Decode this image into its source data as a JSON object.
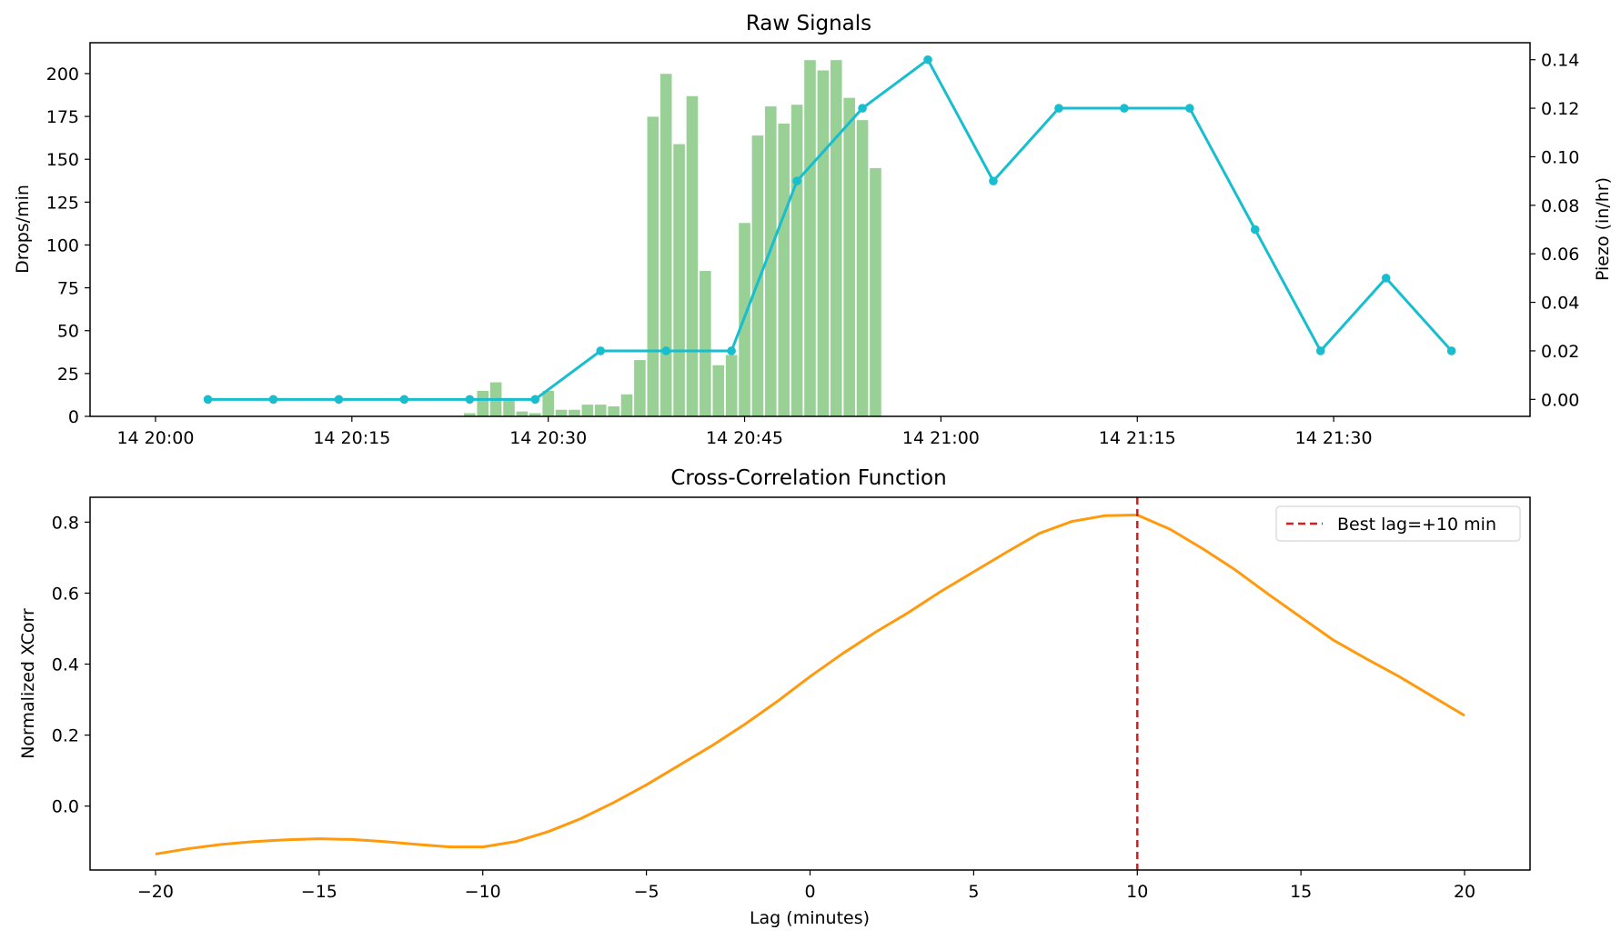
{
  "chart_data": [
    {
      "type": "bar+line",
      "title": "Raw Signals",
      "xlabel": "",
      "ylabel_left": "Drops/min",
      "ylabel_right": "Piezo (in/hr)",
      "x_tick_labels": [
        "14 20:00",
        "14 20:15",
        "14 20:30",
        "14 20:45",
        "14 21:00",
        "14 21:15",
        "14 21:30"
      ],
      "y_left_ticks": [
        0,
        25,
        50,
        75,
        100,
        125,
        150,
        175,
        200
      ],
      "y_right_ticks": [
        "0.00",
        "0.02",
        "0.04",
        "0.06",
        "0.08",
        "0.10",
        "0.12",
        "0.14"
      ],
      "colors": {
        "bars": "#98d096",
        "line": "#17becf"
      },
      "bar_series": {
        "name": "",
        "x_minutes_after_20:00": [
          24,
          25,
          26,
          27,
          28,
          29,
          30,
          31,
          32,
          33,
          34,
          35,
          36,
          37,
          38,
          39,
          40,
          41,
          42,
          43,
          44,
          45,
          46,
          47,
          48,
          49,
          50,
          51,
          52,
          53,
          54,
          55
        ],
        "values": [
          2,
          15,
          20,
          10,
          3,
          2,
          15,
          4,
          4,
          7,
          7,
          6,
          13,
          33,
          175,
          200,
          159,
          187,
          85,
          30,
          36,
          113,
          164,
          181,
          171,
          182,
          208,
          202,
          208,
          186,
          173,
          145
        ]
      },
      "line_series": {
        "name": "",
        "x_minutes_after_20:00": [
          4,
          9,
          14,
          19,
          24,
          29,
          34,
          39,
          44,
          49,
          54,
          59,
          64,
          69,
          74,
          79,
          84,
          89,
          94,
          99
        ],
        "values": [
          0.0,
          0.0,
          0.0,
          0.0,
          0.0,
          0.0,
          0.02,
          0.02,
          0.02,
          0.09,
          0.12,
          0.14,
          0.09,
          0.12,
          0.12,
          0.12,
          0.07,
          0.02,
          0.05,
          0.02
        ]
      },
      "xlim": [
        -5,
        105
      ],
      "ylim_left": [
        0,
        218
      ],
      "ylim_right": [
        -0.007,
        0.147
      ]
    },
    {
      "type": "line",
      "title": "Cross-Correlation Function",
      "xlabel": "Lag (minutes)",
      "ylabel": "Normalized XCorr",
      "x_ticks": [
        -20,
        -15,
        -10,
        -5,
        0,
        5,
        10,
        15,
        20
      ],
      "x_tick_labels": [
        "−20",
        "−15",
        "−10",
        "−5",
        "0",
        "5",
        "10",
        "15",
        "20"
      ],
      "y_ticks": [
        0.0,
        0.2,
        0.4,
        0.6,
        0.8
      ],
      "y_tick_labels": [
        "0.0",
        "0.2",
        "0.4",
        "0.6",
        "0.8"
      ],
      "colors": {
        "line": "#ff9a0d",
        "best_lag": "#e31a1c"
      },
      "series": [
        {
          "name": "",
          "x": [
            -20,
            -19,
            -18,
            -17,
            -16,
            -15,
            -14,
            -13,
            -12,
            -11,
            -10,
            -9,
            -8,
            -7,
            -6,
            -5,
            -4,
            -3,
            -2,
            -1,
            0,
            1,
            2,
            3,
            4,
            5,
            6,
            7,
            8,
            9,
            10,
            11,
            12,
            13,
            14,
            15,
            16,
            17,
            18,
            19,
            20
          ],
          "values": [
            -0.135,
            -0.12,
            -0.108,
            -0.1,
            -0.095,
            -0.092,
            -0.094,
            -0.1,
            -0.108,
            -0.115,
            -0.115,
            -0.1,
            -0.072,
            -0.035,
            0.01,
            0.06,
            0.115,
            0.17,
            0.23,
            0.295,
            0.365,
            0.43,
            0.49,
            0.545,
            0.605,
            0.66,
            0.715,
            0.768,
            0.802,
            0.818,
            0.82,
            0.78,
            0.725,
            0.665,
            0.597,
            0.532,
            0.467,
            0.415,
            0.365,
            0.31,
            0.255
          ]
        }
      ],
      "best_lag": 10,
      "legend": {
        "entries": [
          "Best lag=+10 min"
        ],
        "position": "top-right"
      },
      "xlim": [
        -22,
        22
      ],
      "ylim": [
        -0.18,
        0.87
      ]
    }
  ]
}
